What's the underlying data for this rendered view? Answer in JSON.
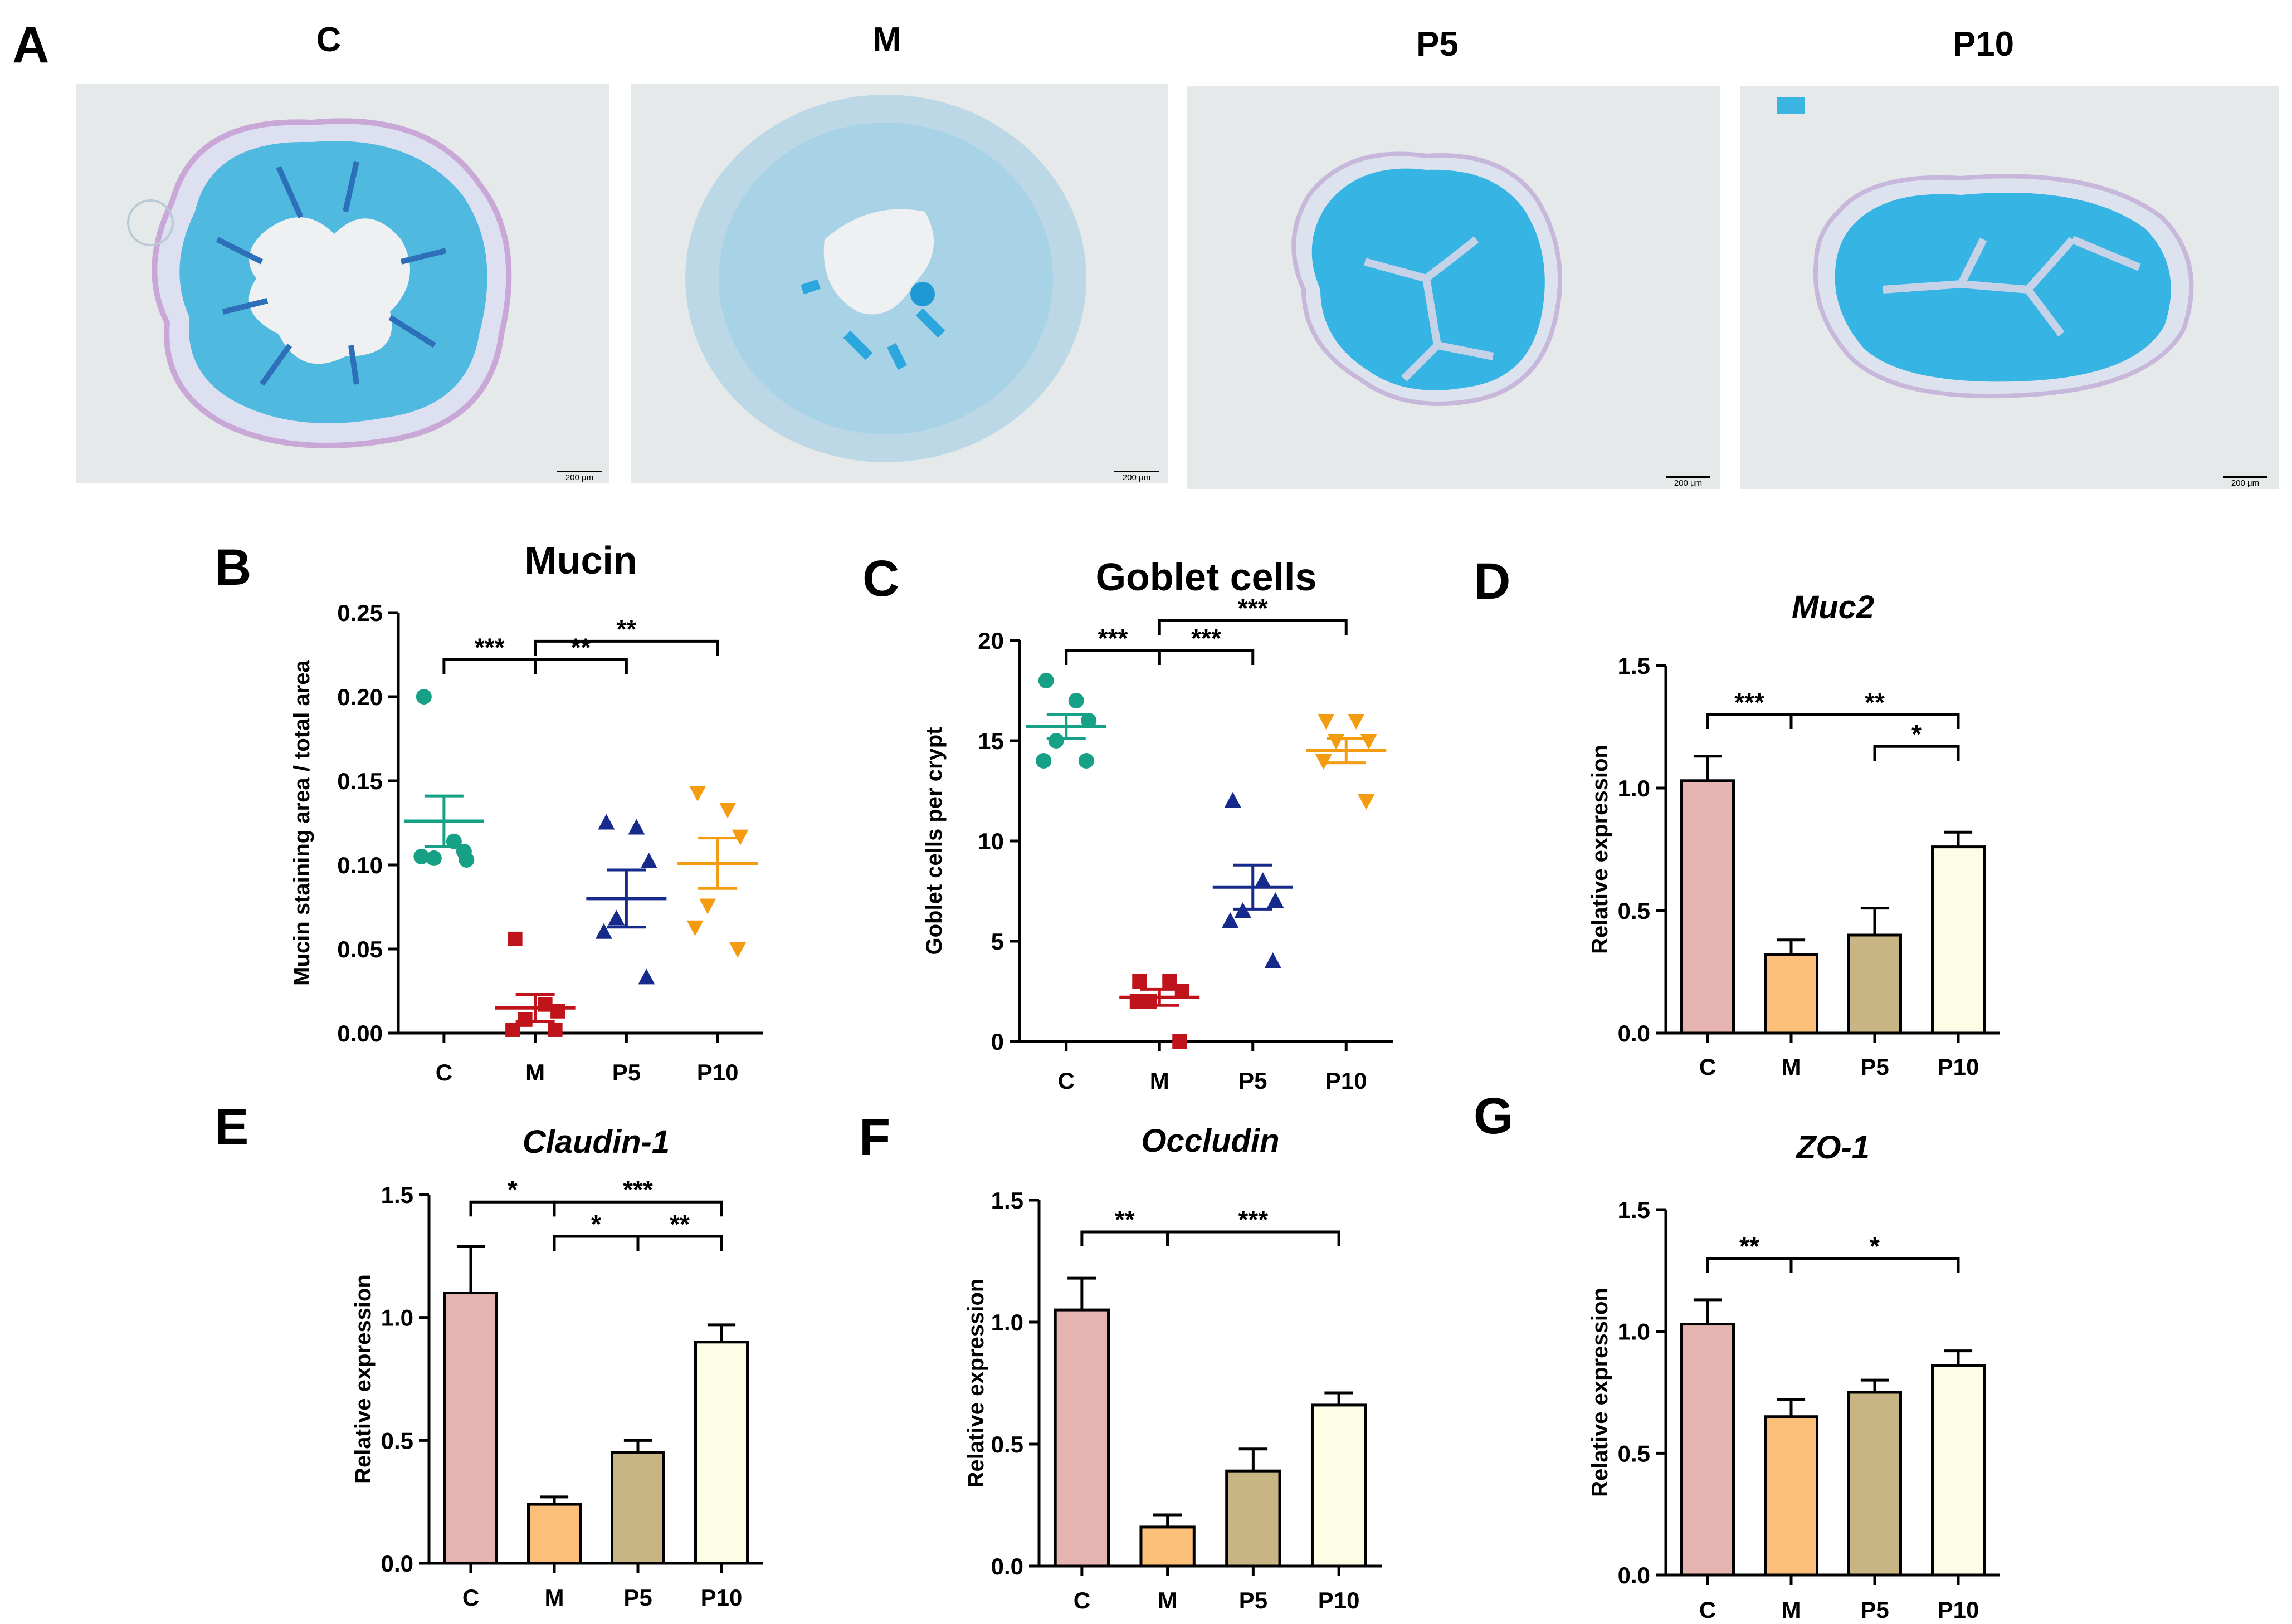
{
  "panel_a": {
    "letter": "A",
    "groups": [
      "C",
      "M",
      "P5",
      "P10"
    ],
    "scale_bar": "200 μm"
  },
  "chart_data": [
    {
      "id": "B",
      "type": "scatter",
      "title": "Mucin",
      "title_style": "normal",
      "ylabel": "Mucin staining area / total area",
      "categories": [
        "C",
        "M",
        "P5",
        "P10"
      ],
      "ylim": [
        0,
        0.25
      ],
      "yticks": [
        "0.00",
        "0.05",
        "0.10",
        "0.15",
        "0.20",
        "0.25"
      ],
      "yticks_values": [
        0,
        0.05,
        0.1,
        0.15,
        0.2,
        0.25
      ],
      "series": [
        {
          "name": "C",
          "color": "#16a085",
          "marker": "circle",
          "points": [
            0.2,
            0.114,
            0.103,
            0.104,
            0.105,
            0.108
          ],
          "mean": 0.126,
          "sem": 0.015
        },
        {
          "name": "M",
          "color": "#c0141c",
          "marker": "square",
          "points": [
            0.056,
            0.017,
            0.013,
            0.008,
            0.002,
            0.002
          ],
          "mean": 0.015,
          "sem": 0.008
        },
        {
          "name": "P5",
          "color": "#162a8c",
          "marker": "triangle-up",
          "points": [
            0.125,
            0.122,
            0.102,
            0.068,
            0.06,
            0.033
          ],
          "mean": 0.08,
          "sem": 0.017
        },
        {
          "name": "P10",
          "color": "#f39c12",
          "marker": "triangle-down",
          "points": [
            0.143,
            0.133,
            0.117,
            0.076,
            0.063,
            0.05
          ],
          "mean": 0.101,
          "sem": 0.015
        }
      ],
      "significance": [
        {
          "from": 0,
          "to": 1,
          "label": "***",
          "y": 0.222
        },
        {
          "from": 1,
          "to": 2,
          "label": "**",
          "y": 0.222
        },
        {
          "from": 1,
          "to": 3,
          "label": "**",
          "y": 0.233
        }
      ]
    },
    {
      "id": "C",
      "type": "scatter",
      "title": "Goblet cells",
      "title_style": "normal",
      "ylabel": "Goblet cells per crypt",
      "categories": [
        "C",
        "M",
        "P5",
        "P10"
      ],
      "ylim": [
        0,
        20
      ],
      "yticks": [
        "0",
        "5",
        "10",
        "15",
        "20"
      ],
      "yticks_values": [
        0,
        5,
        10,
        15,
        20
      ],
      "series": [
        {
          "name": "C",
          "color": "#16a085",
          "marker": "circle",
          "points": [
            18,
            17,
            16,
            15,
            14,
            14
          ],
          "mean": 15.7,
          "sem": 0.6
        },
        {
          "name": "M",
          "color": "#c0141c",
          "marker": "square",
          "points": [
            3,
            3,
            2.5,
            2,
            2,
            0
          ],
          "mean": 2.2,
          "sem": 0.4
        },
        {
          "name": "P5",
          "color": "#162a8c",
          "marker": "triangle-up",
          "points": [
            12,
            8,
            7,
            6.5,
            6,
            4
          ],
          "mean": 7.7,
          "sem": 1.1
        },
        {
          "name": "P10",
          "color": "#f39c12",
          "marker": "triangle-down",
          "points": [
            16,
            16,
            15,
            15,
            14,
            12
          ],
          "mean": 14.5,
          "sem": 0.6
        }
      ],
      "significance": [
        {
          "from": 0,
          "to": 1,
          "label": "***",
          "y": 19.5
        },
        {
          "from": 1,
          "to": 2,
          "label": "***",
          "y": 19.5
        },
        {
          "from": 1,
          "to": 3,
          "label": "***",
          "y": 21.0
        }
      ]
    },
    {
      "id": "D",
      "type": "bar",
      "title": "Muc2",
      "title_style": "italic",
      "ylabel": "Relative expression",
      "categories": [
        "C",
        "M",
        "P5",
        "P10"
      ],
      "ylim": [
        0,
        1.5
      ],
      "yticks": [
        "0.0",
        "0.5",
        "1.0",
        "1.5"
      ],
      "yticks_values": [
        0,
        0.5,
        1.0,
        1.5
      ],
      "values": [
        1.03,
        0.32,
        0.4,
        0.76
      ],
      "errors": [
        0.1,
        0.06,
        0.11,
        0.06
      ],
      "colors": [
        "#e6b4b0",
        "#fcbf7a",
        "#c7b683",
        "#fdfde5"
      ],
      "significance": [
        {
          "from": 0,
          "to": 1,
          "label": "***",
          "y": 1.3
        },
        {
          "from": 1,
          "to": 3,
          "label": "**",
          "y": 1.3
        },
        {
          "from": 2,
          "to": 3,
          "label": "*",
          "y": 1.17
        }
      ]
    },
    {
      "id": "E",
      "type": "bar",
      "title": "Claudin-1",
      "title_style": "italic",
      "ylabel": "Relative expression",
      "categories": [
        "C",
        "M",
        "P5",
        "P10"
      ],
      "ylim": [
        0,
        1.5
      ],
      "yticks": [
        "0.0",
        "0.5",
        "1.0",
        "1.5"
      ],
      "yticks_values": [
        0,
        0.5,
        1.0,
        1.5
      ],
      "values": [
        1.1,
        0.24,
        0.45,
        0.9
      ],
      "errors": [
        0.19,
        0.03,
        0.05,
        0.07
      ],
      "colors": [
        "#e6b4b0",
        "#fcbf7a",
        "#c7b683",
        "#fdfde5"
      ],
      "significance": [
        {
          "from": 0,
          "to": 1,
          "label": "*",
          "y": 1.47
        },
        {
          "from": 1,
          "to": 3,
          "label": "***",
          "y": 1.47
        },
        {
          "from": 1,
          "to": 2,
          "label": "*",
          "y": 1.33
        },
        {
          "from": 2,
          "to": 3,
          "label": "**",
          "y": 1.33
        }
      ]
    },
    {
      "id": "F",
      "type": "bar",
      "title": "Occludin",
      "title_style": "italic",
      "ylabel": "Relative expression",
      "categories": [
        "C",
        "M",
        "P5",
        "P10"
      ],
      "ylim": [
        0,
        1.5
      ],
      "yticks": [
        "0.0",
        "0.5",
        "1.0",
        "1.5"
      ],
      "yticks_values": [
        0,
        0.5,
        1.0,
        1.5
      ],
      "values": [
        1.05,
        0.16,
        0.39,
        0.66
      ],
      "errors": [
        0.13,
        0.05,
        0.09,
        0.05
      ],
      "colors": [
        "#e6b4b0",
        "#fcbf7a",
        "#c7b683",
        "#fdfde5"
      ],
      "significance": [
        {
          "from": 0,
          "to": 1,
          "label": "**",
          "y": 1.37
        },
        {
          "from": 1,
          "to": 3,
          "label": "***",
          "y": 1.37
        }
      ]
    },
    {
      "id": "G",
      "type": "bar",
      "title": "ZO-1",
      "title_style": "italic",
      "ylabel": "Relative expression",
      "categories": [
        "C",
        "M",
        "P5",
        "P10"
      ],
      "ylim": [
        0,
        1.5
      ],
      "yticks": [
        "0.0",
        "0.5",
        "1.0",
        "1.5"
      ],
      "yticks_values": [
        0,
        0.5,
        1.0,
        1.5
      ],
      "values": [
        1.03,
        0.65,
        0.75,
        0.86
      ],
      "errors": [
        0.1,
        0.07,
        0.05,
        0.06
      ],
      "colors": [
        "#e6b4b0",
        "#fcbf7a",
        "#c7b683",
        "#fdfde5"
      ],
      "significance": [
        {
          "from": 0,
          "to": 1,
          "label": "**",
          "y": 1.3
        },
        {
          "from": 1,
          "to": 3,
          "label": "*",
          "y": 1.3
        }
      ]
    }
  ]
}
